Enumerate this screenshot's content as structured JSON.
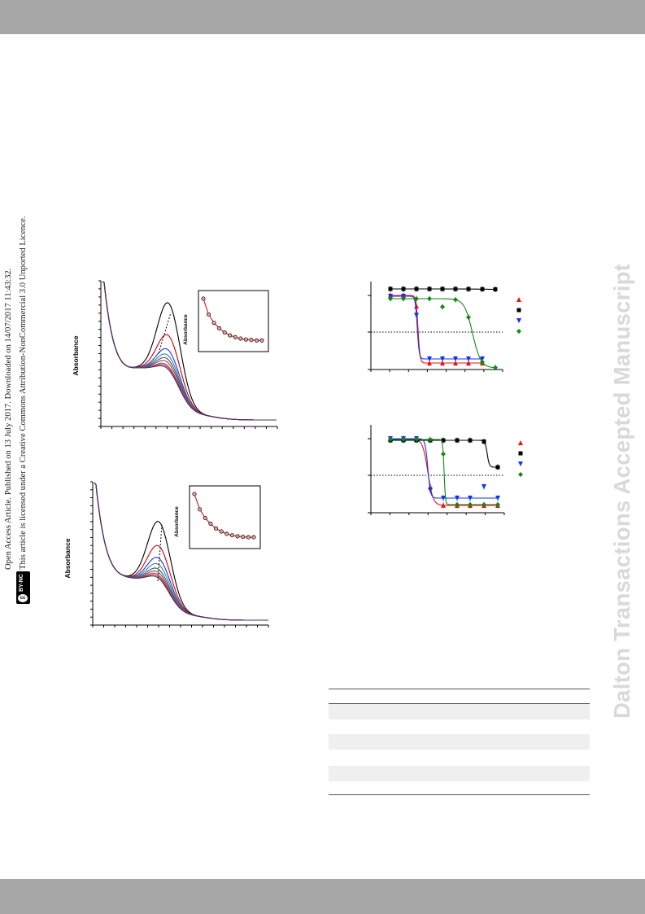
{
  "header_band": {
    "color": "#a6a6a6"
  },
  "footer_band": {
    "color": "#a6a6a6"
  },
  "watermark": {
    "text": "Dalton Transactions Accepted Manuscript",
    "color": "#d9d9dd"
  },
  "access_notice": {
    "line1": "Open Access Article. Published on 13 July 2017. Downloaded on 14/07/2017 11:43:32.",
    "line2": "This article is licensed under a Creative Commons Attribution-NonCommercial 3.0 Unported Licence."
  },
  "license_badge": {
    "icon": "cc-icon",
    "label": "BY-NC"
  },
  "figures": {
    "spectrum_top": {
      "ylabel": "Absorbance",
      "inset_ylabel": "Absorbance",
      "curve_colors": [
        "#000000",
        "#cc0000",
        "#2233cc",
        "#3377cc",
        "#336633",
        "#884488",
        "#cc4444",
        "#994444",
        "#443366"
      ],
      "inset_values": [
        1.0,
        0.66,
        0.48,
        0.36,
        0.27,
        0.21,
        0.17,
        0.14,
        0.12,
        0.11,
        0.1,
        0.1
      ]
    },
    "spectrum_bottom": {
      "ylabel": "Absorbance",
      "inset_ylabel": "Absorbance",
      "curve_colors": [
        "#000000",
        "#cc0000",
        "#2233cc",
        "#3377cc",
        "#336633",
        "#884488",
        "#cc4444",
        "#994444",
        "#443366"
      ],
      "inset_values": [
        1.0,
        0.68,
        0.5,
        0.38,
        0.28,
        0.22,
        0.17,
        0.14,
        0.12,
        0.11,
        0.1,
        0.1
      ]
    },
    "dose_response_top": {
      "series": [
        {
          "marker": "triangle-up",
          "color": "#ee1111"
        },
        {
          "marker": "square",
          "color": "#000000"
        },
        {
          "marker": "triangle-down",
          "color": "#1133ee"
        },
        {
          "marker": "diamond",
          "color": "#118811"
        }
      ]
    },
    "dose_response_bottom": {
      "series": [
        {
          "marker": "triangle-up",
          "color": "#ee1111"
        },
        {
          "marker": "square",
          "color": "#000000"
        },
        {
          "marker": "triangle-down",
          "color": "#1133ee"
        },
        {
          "marker": "diamond",
          "color": "#118811"
        }
      ]
    }
  },
  "table": {
    "shaded_row_color": "#efefef",
    "shaded_rows": 5
  }
}
